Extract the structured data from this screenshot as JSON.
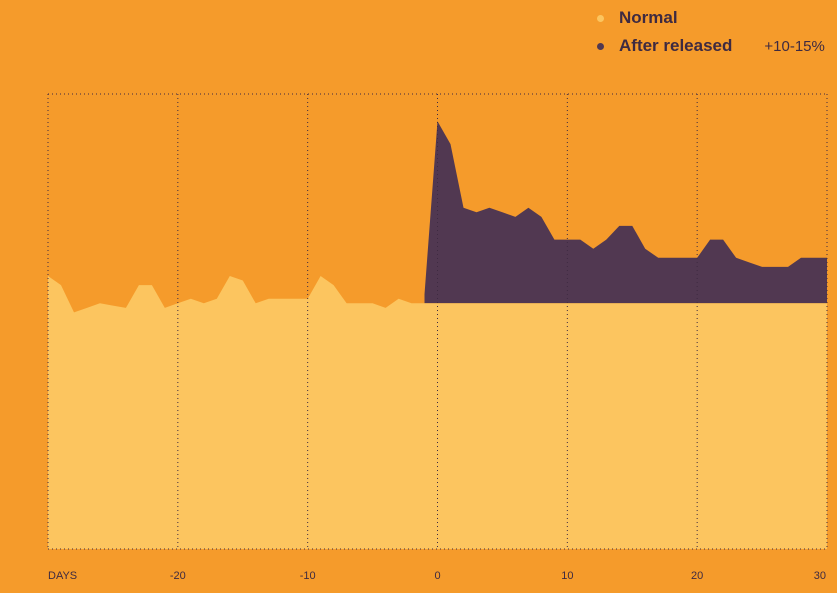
{
  "legend": {
    "items": [
      {
        "label": "Normal",
        "color": "#FCC55F"
      },
      {
        "label": "After released",
        "color": "#513851",
        "note": "+10-15%"
      }
    ]
  },
  "chart_data": {
    "type": "area",
    "xlabel": "DAYS",
    "xlim": [
      -30,
      30
    ],
    "ylim": [
      0,
      10
    ],
    "grid": true,
    "legend_position": "top-right",
    "x_ticks": [
      {
        "value": -30,
        "label": "DAYS"
      },
      {
        "value": -20,
        "label": "-20"
      },
      {
        "value": -10,
        "label": "-10"
      },
      {
        "value": 0,
        "label": "0"
      },
      {
        "value": 10,
        "label": "10"
      },
      {
        "value": 20,
        "label": "20"
      },
      {
        "value": 30,
        "label": "30"
      }
    ],
    "baseline": 5.4,
    "series": [
      {
        "name": "Normal",
        "color": "#FCC55F",
        "x": [
          -30,
          -29,
          -28,
          -27,
          -26,
          -25,
          -24,
          -23,
          -22,
          -21,
          -20,
          -19,
          -18,
          -17,
          -16,
          -15,
          -14,
          -13,
          -12,
          -11,
          -10,
          -9,
          -8,
          -7,
          -6,
          -5,
          -4,
          -3,
          -2,
          -1
        ],
        "values": [
          6.0,
          5.8,
          5.2,
          5.3,
          5.4,
          5.35,
          5.3,
          5.8,
          5.8,
          5.3,
          5.4,
          5.5,
          5.4,
          5.5,
          6.0,
          5.9,
          5.4,
          5.5,
          5.5,
          5.5,
          5.5,
          6.0,
          5.8,
          5.4,
          5.4,
          5.4,
          5.3,
          5.5,
          5.4,
          5.4
        ]
      },
      {
        "name": "After released",
        "color": "#513851",
        "x": [
          -1,
          0,
          1,
          2,
          3,
          4,
          5,
          6,
          7,
          8,
          9,
          10,
          11,
          12,
          13,
          14,
          15,
          16,
          17,
          18,
          19,
          20,
          21,
          22,
          23,
          24,
          25,
          26,
          27,
          28,
          29,
          30
        ],
        "values": [
          5.6,
          9.4,
          8.9,
          7.5,
          7.4,
          7.5,
          7.4,
          7.3,
          7.5,
          7.3,
          6.8,
          6.8,
          6.8,
          6.6,
          6.8,
          7.1,
          7.1,
          6.6,
          6.4,
          6.4,
          6.4,
          6.4,
          6.8,
          6.8,
          6.4,
          6.3,
          6.2,
          6.2,
          6.2,
          6.4,
          6.4,
          6.4
        ]
      }
    ]
  }
}
